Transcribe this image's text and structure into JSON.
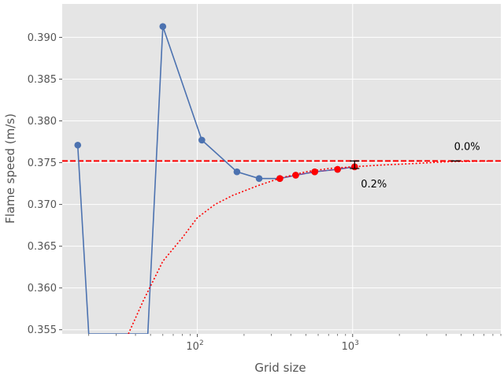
{
  "chart_data": {
    "type": "line",
    "title": "",
    "xlabel": "Grid size",
    "ylabel": "Flame speed (m/s)",
    "xscale": "log",
    "xlim": [
      13.5,
      9000
    ],
    "ylim": [
      0.3545,
      0.394
    ],
    "grid": true,
    "background": "#E5E5E5",
    "x_tick_labels": [
      {
        "value": 100,
        "base": "10",
        "exp": "2"
      },
      {
        "value": 1000,
        "base": "10",
        "exp": "3"
      }
    ],
    "y_ticks": [
      0.355,
      0.36,
      0.365,
      0.37,
      0.375,
      0.38,
      0.385,
      0.39
    ],
    "y_tick_labels": [
      "0.355",
      "0.360",
      "0.365",
      "0.370",
      "0.375",
      "0.380",
      "0.385",
      "0.390"
    ],
    "series": [
      {
        "kind": "solution",
        "color": "#4C72B0",
        "points": [
          [
            17,
            0.3771
          ],
          [
            20,
            0.3545
          ],
          [
            48,
            0.3545
          ],
          [
            60,
            0.3913
          ],
          [
            107,
            0.3777
          ],
          [
            180,
            0.3739
          ],
          [
            250,
            0.3731
          ],
          [
            340,
            0.3731
          ],
          [
            430,
            0.3735
          ],
          [
            570,
            0.3739
          ],
          [
            800,
            0.3742
          ],
          [
            1030,
            0.3745
          ]
        ],
        "marker_points": [
          [
            17,
            0.3771
          ],
          [
            60,
            0.3913
          ],
          [
            107,
            0.3777
          ],
          [
            180,
            0.3739
          ],
          [
            250,
            0.3731
          ],
          [
            340,
            0.3731
          ],
          [
            430,
            0.3735
          ],
          [
            570,
            0.3739
          ],
          [
            800,
            0.3742
          ],
          [
            1030,
            0.3745
          ]
        ]
      },
      {
        "kind": "fit-points",
        "color": "#FF0000",
        "points": [
          [
            340,
            0.3731
          ],
          [
            430,
            0.3735
          ],
          [
            570,
            0.3739
          ],
          [
            800,
            0.3742
          ],
          [
            1030,
            0.3745
          ]
        ]
      },
      {
        "kind": "extrapolation",
        "color": "#FF0000",
        "style": "dotted",
        "points": [
          [
            36,
            0.3545
          ],
          [
            45,
            0.3585
          ],
          [
            60,
            0.3632
          ],
          [
            80,
            0.366
          ],
          [
            100,
            0.3684
          ],
          [
            130,
            0.37
          ],
          [
            170,
            0.3711
          ],
          [
            250,
            0.3723
          ],
          [
            350,
            0.3732
          ],
          [
            500,
            0.3739
          ],
          [
            700,
            0.3743
          ],
          [
            1000,
            0.3745
          ],
          [
            1500,
            0.3747
          ],
          [
            2500,
            0.3749
          ],
          [
            4000,
            0.3751
          ],
          [
            8000,
            0.3752
          ]
        ]
      }
    ],
    "asymptote": {
      "value": 0.3752,
      "color": "#FF0000",
      "style": "dashed"
    },
    "error_bars": [
      {
        "x": 1030,
        "y_low": 0.3743,
        "y_high": 0.3752,
        "color": "#000000"
      },
      {
        "x": 4600,
        "y_low": 0.3752,
        "y_high": 0.3752,
        "color": "#000000"
      }
    ],
    "annotations": [
      {
        "x": 1130,
        "y": 0.3724,
        "text": "0.2%"
      },
      {
        "x": 4500,
        "y": 0.3769,
        "text": "0.0%"
      }
    ]
  }
}
